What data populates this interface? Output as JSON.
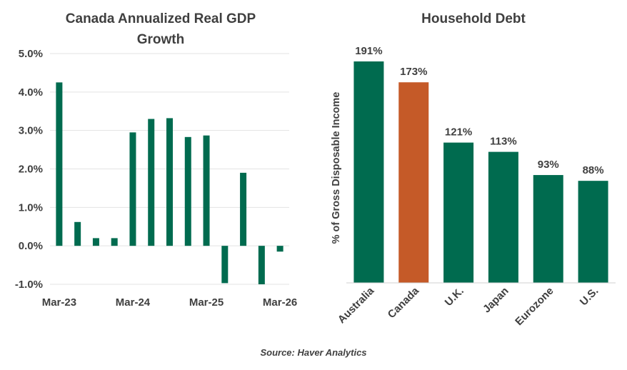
{
  "chart_data": [
    {
      "type": "bar",
      "title_lines": [
        "Canada Annualized Real GDP",
        "Growth"
      ],
      "xlabel": "",
      "ylabel": "",
      "ylim": [
        -1.0,
        5.0
      ],
      "yticks": [
        5.0,
        4.0,
        3.0,
        2.0,
        1.0,
        0.0,
        -1.0
      ],
      "ytick_labels": [
        "5.0%",
        "4.0%",
        "3.0%",
        "2.0%",
        "1.0%",
        "0.0%",
        "-1.0%"
      ],
      "xtick_labels": [
        "Mar-23",
        "Mar-24",
        "Mar-25",
        "Mar-26"
      ],
      "values": [
        4.25,
        0.62,
        0.2,
        0.2,
        2.95,
        3.3,
        3.32,
        2.83,
        2.87,
        -0.97,
        1.9,
        -1.0,
        -0.15
      ],
      "grid": true,
      "color": "#006b4f"
    },
    {
      "type": "bar",
      "title": "Household Debt",
      "ylabel": "% of Gross Disposable Income",
      "categories": [
        "Australia",
        "Canada",
        "U.K.",
        "Japan",
        "Eurozone",
        "U.S."
      ],
      "values": [
        191,
        173,
        121,
        113,
        93,
        88
      ],
      "data_labels": [
        "191%",
        "173%",
        "121%",
        "113%",
        "93%",
        "88%"
      ],
      "colors": [
        "#006b4f",
        "#c55a28",
        "#006b4f",
        "#006b4f",
        "#006b4f",
        "#006b4f"
      ],
      "ylim": [
        0,
        191
      ]
    }
  ],
  "source": "Source: Haver Analytics"
}
